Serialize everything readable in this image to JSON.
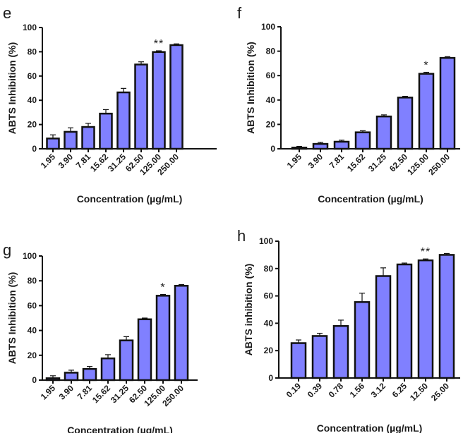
{
  "chart_data": [
    {
      "type": "bar",
      "panel": "e",
      "ylabel": "ABTS Inhibition (%)",
      "xlabel": "Concentration (µg/mL)",
      "ylim": [
        0,
        100
      ],
      "yticks": [
        "0",
        "20",
        "40",
        "60",
        "80",
        "100"
      ],
      "categories": [
        "1.95",
        "3.90",
        "7.81",
        "15.62",
        "31.25",
        "62.50",
        "125.00",
        "250.00"
      ],
      "values": [
        8.5,
        14,
        18,
        29,
        46.5,
        69.5,
        79.8,
        85.5
      ],
      "errors": [
        3,
        3.3,
        3,
        3.3,
        3.3,
        2.2,
        1,
        1
      ],
      "annotations": [
        {
          "category": "125.00",
          "text": "**"
        }
      ],
      "bar_color": "#8080ff"
    },
    {
      "type": "bar",
      "panel": "f",
      "ylabel": "ABTS Inhibition (%)",
      "xlabel": "Concentration (µg/mL)",
      "ylim": [
        0,
        100
      ],
      "yticks": [
        "0",
        "20",
        "40",
        "60",
        "80",
        "100"
      ],
      "categories": [
        "1.95",
        "3.90",
        "7.81",
        "15.62",
        "31.25",
        "62.50",
        "125.00",
        "250.00"
      ],
      "values": [
        1,
        4,
        5.8,
        13.5,
        26.5,
        42,
        61.5,
        74.5
      ],
      "errors": [
        1,
        1.3,
        1.3,
        1.3,
        1.3,
        1,
        1.2,
        1
      ],
      "annotations": [
        {
          "category": "125.00",
          "text": "*"
        }
      ],
      "bar_color": "#8080ff"
    },
    {
      "type": "bar",
      "panel": "g",
      "ylabel": "ABTS Inhibition (%)",
      "xlabel": "Concentration (µg/mL)",
      "ylim": [
        0,
        100
      ],
      "yticks": [
        "0",
        "20",
        "40",
        "60",
        "80",
        "100"
      ],
      "categories": [
        "1.95",
        "3.90",
        "7.81",
        "15.62",
        "31.25",
        "62.50",
        "125.00",
        "250.00"
      ],
      "values": [
        1.5,
        6,
        9,
        17.5,
        32,
        49,
        68,
        76
      ],
      "errors": [
        2,
        2,
        2,
        3,
        3,
        1,
        1,
        1
      ],
      "annotations": [
        {
          "category": "125.00",
          "text": "*"
        }
      ],
      "bar_color": "#8080ff"
    },
    {
      "type": "bar",
      "panel": "h",
      "ylabel": "ABTS inhibition (%)",
      "xlabel": "Concentration (µg/mL)",
      "ylim": [
        0,
        100
      ],
      "yticks": [
        "0",
        "20",
        "40",
        "60",
        "80",
        "100"
      ],
      "categories": [
        "0.19",
        "0.39",
        "0.78",
        "1.56",
        "3.12",
        "6.25",
        "12.50",
        "25.00"
      ],
      "values": [
        25.5,
        30.7,
        38,
        55.5,
        74.5,
        83,
        86,
        90
      ],
      "errors": [
        2.3,
        2,
        4.3,
        6.5,
        6,
        1,
        1,
        1
      ],
      "annotations": [
        {
          "category": "12.50",
          "text": "**"
        }
      ],
      "bar_color": "#8080ff"
    }
  ]
}
